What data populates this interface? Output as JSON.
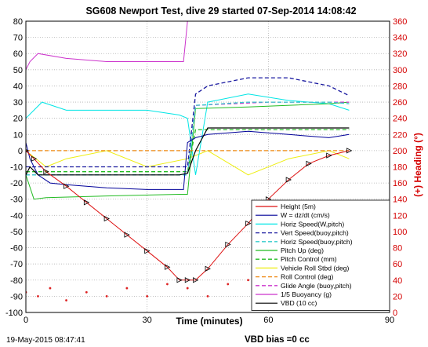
{
  "chart_data": {
    "type": "line",
    "title": "SG608 Newport Test, dive 29 started 07-Sep-2014 14:08:42",
    "xlabel": "Time (minutes)",
    "ylabel_right": "(+) Heading (°)",
    "xlim": [
      0,
      90
    ],
    "ylim": [
      -100,
      80
    ],
    "ylim_right": [
      0,
      360
    ],
    "x_ticks": [
      "0",
      "30",
      "60",
      "90"
    ],
    "y_ticks": [
      "80",
      "70",
      "60",
      "50",
      "40",
      "30",
      "20",
      "10",
      "0",
      "-10",
      "-20",
      "-30",
      "-40",
      "-50",
      "-60",
      "-70",
      "-80",
      "-90",
      "-100"
    ],
    "y_right_ticks": [
      "360",
      "340",
      "320",
      "300",
      "280",
      "260",
      "240",
      "220",
      "200",
      "180",
      "160",
      "140",
      "120",
      "100",
      "80",
      "60",
      "40",
      "20",
      "0"
    ],
    "grid": true,
    "legend_position": "bottom-right",
    "footer_left": "19-May-2015 08:47:41",
    "footer_right": "VBD bias =0 cc",
    "colors": {
      "height": "#dd1111",
      "w": "#000099",
      "horiz_w": "#00e5e5",
      "vert_buoy": "#1a1aa0",
      "horiz_buoy": "#33cccc",
      "pitch_up": "#22bb22",
      "pitch_control": "#22bb22",
      "roll": "#eeee11",
      "roll_control": "#ee8811",
      "glide": "#cc33cc",
      "buoyancy": "#cc33cc",
      "vbd": "#000000",
      "heading": "#dd2222",
      "right_axis": "#d40000"
    },
    "series": [
      {
        "name": "Height (5m)",
        "x": [
          0,
          2,
          5,
          10,
          15,
          20,
          25,
          30,
          35,
          38,
          40,
          42,
          45,
          50,
          55,
          60,
          65,
          70,
          75,
          80
        ],
        "y": [
          0,
          -5,
          -13,
          -22,
          -32,
          -42,
          -52,
          -62,
          -72,
          -80,
          -80,
          -80,
          -73,
          -58,
          -45,
          -30,
          -18,
          -8,
          -3,
          0
        ]
      },
      {
        "name": "W = dz/dt (cm/s)",
        "x": [
          0,
          1,
          3,
          6,
          10,
          20,
          30,
          39,
          40,
          42,
          45,
          55,
          65,
          75,
          80
        ],
        "y": [
          5,
          -5,
          -15,
          -20,
          -21,
          -23,
          -24,
          -24,
          5,
          8,
          10,
          12,
          10,
          8,
          10
        ]
      },
      {
        "name": "Horiz Speed(W,pitch)",
        "x": [
          0,
          2,
          4,
          10,
          20,
          30,
          38,
          40,
          42,
          45,
          55,
          65,
          75,
          80
        ],
        "y": [
          20,
          25,
          30,
          25,
          25,
          25,
          22,
          20,
          -15,
          30,
          35,
          31,
          29,
          25
        ]
      },
      {
        "name": "Vert Speed(buoy,pitch)",
        "x": [
          0,
          5,
          10,
          20,
          30,
          38,
          40,
          42,
          45,
          55,
          65,
          75,
          80
        ],
        "y": [
          -10,
          -10,
          -10,
          -10,
          -10,
          -10,
          -10,
          35,
          40,
          45,
          45,
          40,
          34
        ]
      },
      {
        "name": "Horiz Speed(buoy,pitch)",
        "x": [
          0,
          5,
          20,
          38,
          40,
          42,
          55,
          75,
          80
        ],
        "y": [
          -15,
          -15,
          -15,
          -15,
          -15,
          28,
          30,
          30,
          29
        ]
      },
      {
        "name": "Pitch Up (deg)",
        "x": [
          0,
          2,
          5,
          20,
          38,
          40,
          42,
          55,
          75,
          80
        ],
        "y": [
          -15,
          -30,
          -29,
          -28,
          -27,
          -27,
          26,
          27,
          29,
          30
        ]
      },
      {
        "name": "Pitch Control (mm)",
        "x": [
          0,
          5,
          20,
          38,
          40,
          42,
          55,
          75,
          80
        ],
        "y": [
          -13,
          -13,
          -13,
          -13,
          -13,
          13,
          13,
          13,
          13
        ]
      },
      {
        "name": "Vehicle Roll Stbd (deg)",
        "x": [
          0,
          5,
          10,
          20,
          30,
          40,
          45,
          55,
          65,
          75,
          80
        ],
        "y": [
          0,
          -10,
          -5,
          0,
          -10,
          -5,
          0,
          -15,
          -5,
          0,
          -5
        ]
      },
      {
        "name": "Roll Control (deg)",
        "x": [
          0,
          20,
          40,
          60,
          80
        ],
        "y": [
          0,
          0,
          0,
          0,
          0
        ]
      },
      {
        "name": "Glide Angle (buoy,pitch)",
        "x": [
          0,
          20,
          38,
          40,
          42,
          60,
          80
        ],
        "y": [
          -15,
          -15,
          -15,
          -15,
          28,
          30,
          30
        ]
      },
      {
        "name": "1/5 Buoyancy (g)",
        "x": [
          0,
          1,
          3,
          10,
          20,
          30,
          39,
          40,
          45,
          60,
          75,
          80
        ],
        "y": [
          50,
          55,
          60,
          57,
          55,
          55,
          55,
          80,
          80,
          80,
          80,
          80
        ]
      },
      {
        "name": "VBD (10 cc)",
        "x": [
          0,
          1,
          3,
          10,
          20,
          30,
          38,
          40,
          42,
          45,
          60,
          80
        ],
        "y": [
          -15,
          -10,
          -15,
          -15,
          -15,
          -15,
          -15,
          -14,
          0,
          14,
          14,
          14
        ]
      },
      {
        "name": "(+) Heading",
        "axis": "right",
        "x": [
          0,
          3,
          6,
          10,
          15,
          20,
          25,
          30,
          35,
          40,
          45,
          50,
          55,
          60,
          65,
          70,
          75,
          80
        ],
        "y": [
          25,
          20,
          30,
          15,
          25,
          20,
          30,
          20,
          35,
          30,
          20,
          35,
          40,
          30,
          35,
          25,
          20,
          30
        ]
      }
    ]
  }
}
